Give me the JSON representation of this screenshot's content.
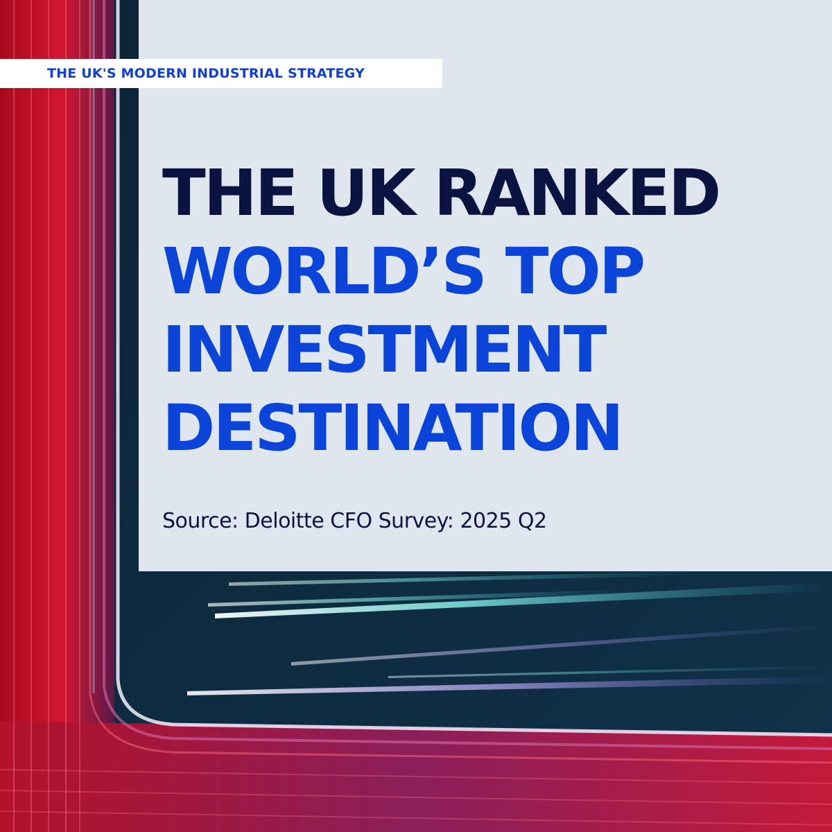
{
  "tag": {
    "label": "THE UK'S MODERN INDUSTRIAL STRATEGY"
  },
  "headline": {
    "line1": "THE UK RANKED",
    "line2": "WORLD’S TOP",
    "line3": "INVESTMENT",
    "line4": "DESTINATION"
  },
  "source": {
    "text": "Source: Deloitte CFO Survey: 2025 Q2"
  },
  "colors": {
    "panel": "#e0e6ee",
    "headline_dark": "#0b1440",
    "headline_blue": "#0a44d8",
    "tag_text": "#0f3fd4",
    "bg_red": "#c8102e",
    "bg_dark": "#0d1b2e"
  }
}
